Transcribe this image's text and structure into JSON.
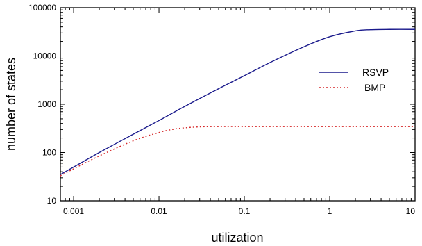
{
  "chart_data": {
    "type": "line",
    "title": "",
    "xlabel": "utilization",
    "ylabel": "number of states",
    "x_scale": "log",
    "y_scale": "log",
    "xlim": [
      0.0007,
      10
    ],
    "ylim": [
      10,
      100000
    ],
    "x_ticks": [
      {
        "value": 0.001,
        "label": "0.001"
      },
      {
        "value": 0.01,
        "label": "0.01"
      },
      {
        "value": 0.1,
        "label": "0.1"
      },
      {
        "value": 1,
        "label": "1"
      },
      {
        "value": 10,
        "label": "10"
      }
    ],
    "y_ticks": [
      {
        "value": 10,
        "label": "10"
      },
      {
        "value": 100,
        "label": "100"
      },
      {
        "value": 1000,
        "label": "1000"
      },
      {
        "value": 10000,
        "label": "10000"
      },
      {
        "value": 100000,
        "label": "100000"
      }
    ],
    "grid": false,
    "legend_position": "right",
    "series": [
      {
        "name": "RSVP",
        "color": "#1a1a8c",
        "style": "solid",
        "x": [
          0.0007,
          0.001,
          0.002,
          0.005,
          0.01,
          0.02,
          0.05,
          0.1,
          0.2,
          0.5,
          1,
          2,
          3,
          5,
          10
        ],
        "y": [
          35,
          50,
          100,
          240,
          460,
          900,
          2100,
          3900,
          7300,
          15500,
          25000,
          33000,
          35000,
          35500,
          35500
        ]
      },
      {
        "name": "BMP",
        "color": "#d62728",
        "style": "dotted",
        "x": [
          0.0007,
          0.001,
          0.002,
          0.005,
          0.01,
          0.015,
          0.02,
          0.03,
          0.05,
          0.1,
          1,
          10
        ],
        "y": [
          33,
          46,
          85,
          175,
          260,
          305,
          325,
          340,
          345,
          345,
          345,
          345
        ]
      }
    ]
  }
}
